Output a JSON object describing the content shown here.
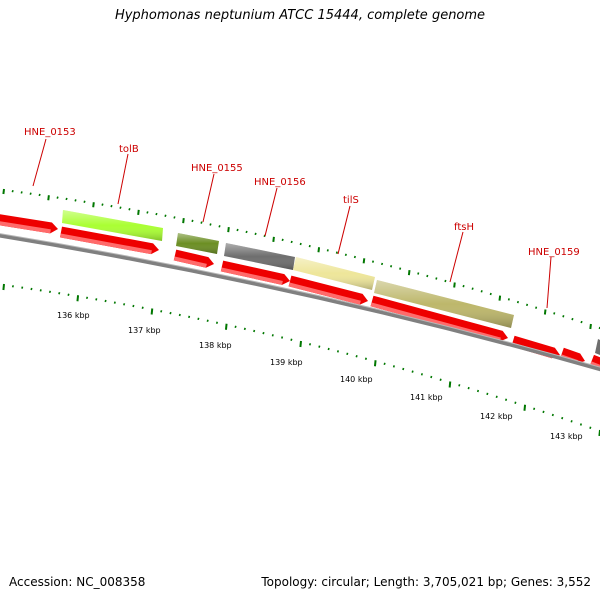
{
  "title": "Hyphomonas neptunium ATCC 15444, complete genome",
  "footer": {
    "accession": "Accession: NC_008358",
    "summary": "Topology: circular; Length: 3,705,021 bp; Genes: 3,552"
  },
  "colors": {
    "cds": "#ee0000",
    "label": "#cc0000",
    "backbone": "#808080",
    "tick": "#007700"
  },
  "gene_labels": [
    "HNE_0153",
    "tolB",
    "HNE_0155",
    "HNE_0156",
    "tilS",
    "ftsH",
    "HNE_0159"
  ],
  "kbp_labels": [
    "136 kbp",
    "137 kbp",
    "138 kbp",
    "139 kbp",
    "140 kbp",
    "141 kbp",
    "142 kbp",
    "143 kbp"
  ]
}
